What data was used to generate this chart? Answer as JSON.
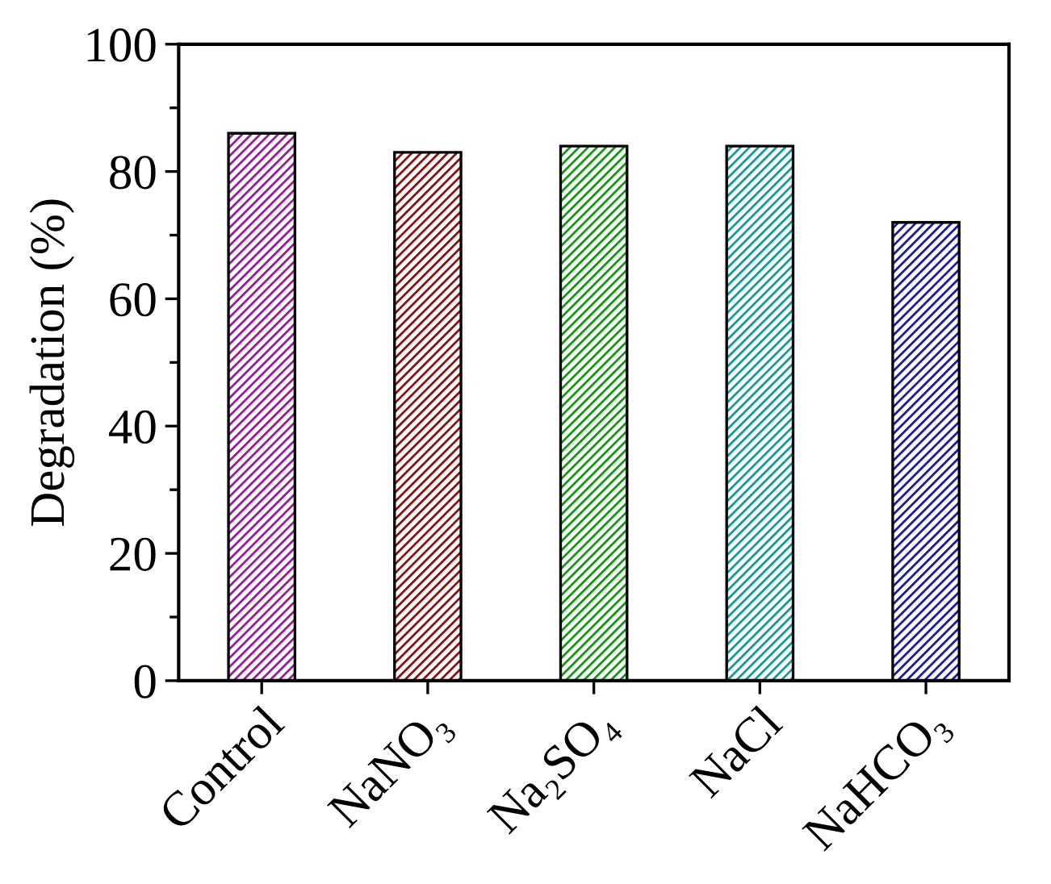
{
  "chart_data": {
    "type": "bar",
    "ylabel": "Degradation (%)",
    "categories": [
      "Control",
      "NaNO₃",
      "Na₂SO₄",
      "NaCl",
      "NaHCO₃"
    ],
    "values": [
      86,
      83,
      84,
      84,
      72
    ],
    "colors": [
      "#9a1aa0",
      "#8b1010",
      "#119a11",
      "#139a9a",
      "#1a1aa8"
    ],
    "ylim": [
      0,
      100
    ],
    "yticks": [
      0,
      20,
      40,
      60,
      80,
      100
    ],
    "grid": false
  }
}
